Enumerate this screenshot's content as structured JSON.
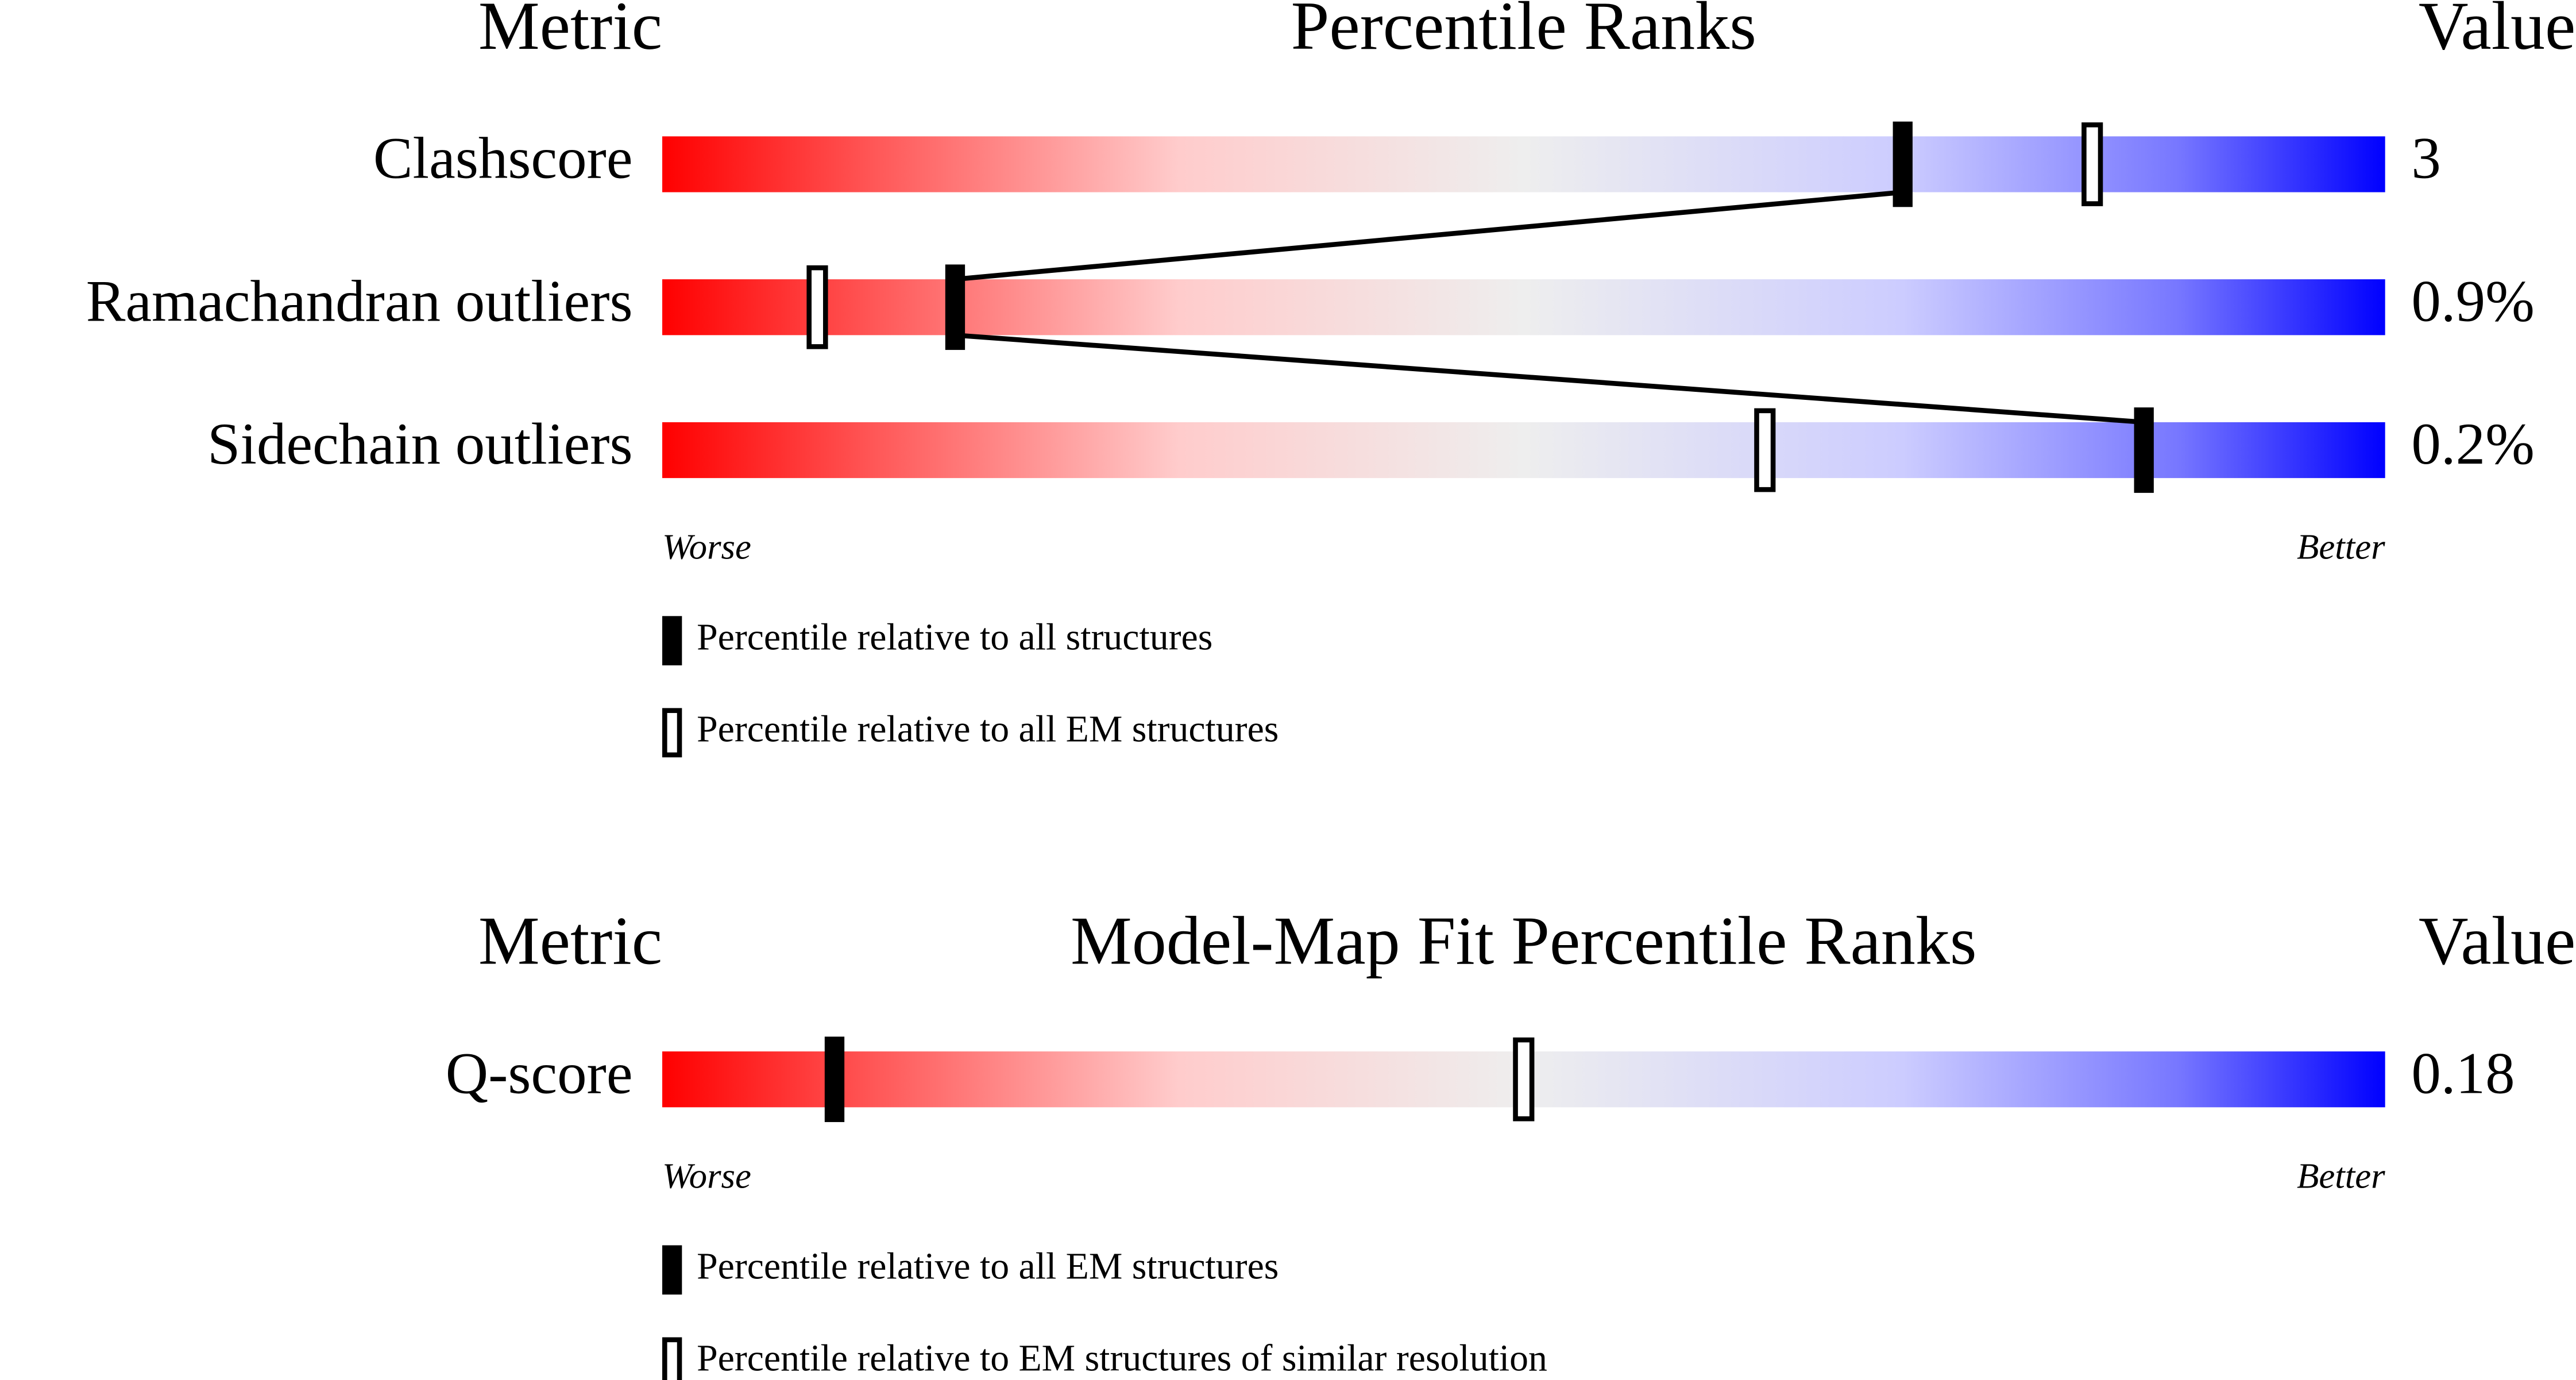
{
  "chart_data": [
    {
      "type": "percentile",
      "title": "Percentile Ranks",
      "metric_header": "Metric",
      "value_header": "Value",
      "categories": [
        "Clashscore",
        "Ramachandran outliers",
        "Sidechain outliers"
      ],
      "metric_values": [
        "3",
        "0.9%",
        "0.2%"
      ],
      "series": [
        {
          "name": "Percentile relative to all structures",
          "color": "#000000",
          "style": "filled",
          "values": [
            72,
            17,
            86
          ]
        },
        {
          "name": "Percentile relative to all EM structures",
          "color": "#000000",
          "style": "open",
          "values": [
            83,
            9,
            64
          ]
        }
      ],
      "xlim": [
        0,
        100
      ],
      "x_labels": [
        "Worse",
        "Better"
      ]
    },
    {
      "type": "percentile",
      "title": "Model-Map Fit Percentile Ranks",
      "metric_header": "Metric",
      "value_header": "Value",
      "categories": [
        "Q-score"
      ],
      "metric_values": [
        "0.18"
      ],
      "series": [
        {
          "name": "Percentile relative to all EM structures",
          "color": "#000000",
          "style": "filled",
          "values": [
            10
          ]
        },
        {
          "name": "Percentile relative to EM structures of similar resolution",
          "color": "#000000",
          "style": "open",
          "values": [
            50
          ]
        }
      ],
      "xlim": [
        0,
        100
      ],
      "x_labels": [
        "Worse",
        "Better"
      ]
    }
  ]
}
